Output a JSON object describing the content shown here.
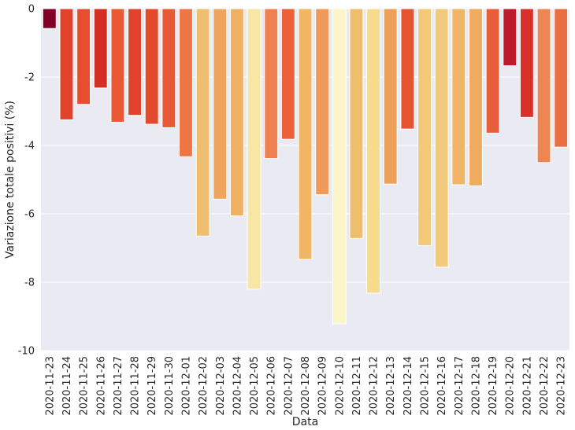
{
  "chart_data": {
    "type": "bar",
    "title": "",
    "xlabel": "Data",
    "ylabel": "Variazione totale positivi (%)",
    "ylim": [
      -10,
      0
    ],
    "yticks": [
      0,
      -2,
      -4,
      -6,
      -8,
      -10
    ],
    "grid": true,
    "legend": "none",
    "plot_background": "#eaeaf2",
    "grid_color": "#ffffff",
    "categories": [
      "2020-11-23",
      "2020-11-24",
      "2020-11-25",
      "2020-11-26",
      "2020-11-27",
      "2020-11-28",
      "2020-11-29",
      "2020-11-30",
      "2020-12-01",
      "2020-12-02",
      "2020-12-03",
      "2020-12-04",
      "2020-12-05",
      "2020-12-06",
      "2020-12-07",
      "2020-12-08",
      "2020-12-09",
      "2020-12-10",
      "2020-12-11",
      "2020-12-12",
      "2020-12-13",
      "2020-12-14",
      "2020-12-15",
      "2020-12-16",
      "2020-12-17",
      "2020-12-18",
      "2020-12-19",
      "2020-12-20",
      "2020-12-21",
      "2020-12-22",
      "2020-12-23"
    ],
    "values": [
      -0.58,
      -3.25,
      -2.8,
      -2.32,
      -3.32,
      -3.12,
      -3.38,
      -3.48,
      -4.33,
      -6.65,
      -5.57,
      -6.06,
      -8.2,
      -4.38,
      -3.82,
      -7.33,
      -5.44,
      -9.22,
      -6.72,
      -8.32,
      -5.13,
      -3.52,
      -6.93,
      -7.56,
      -5.15,
      -5.18,
      -3.64,
      -1.67,
      -3.18,
      -4.5,
      -4.05
    ],
    "colors": [
      "#800026",
      "#e2412a",
      "#e54e2e",
      "#d42d23",
      "#e95a34",
      "#e0422a",
      "#e34a2c",
      "#e85a35",
      "#ef7545",
      "#edbf6f",
      "#efa45d",
      "#f0b164",
      "#f8e6a4",
      "#ee8051",
      "#eb6139",
      "#f0b663",
      "#f09a5a",
      "#fbf6c9",
      "#efbe6c",
      "#f6da8d",
      "#eda05a",
      "#e45430",
      "#f1c978",
      "#f1cb7b",
      "#f0b565",
      "#efab60",
      "#e95e3a",
      "#bd1a2e",
      "#d8302b",
      "#ed8652",
      "#eb6e42"
    ]
  }
}
